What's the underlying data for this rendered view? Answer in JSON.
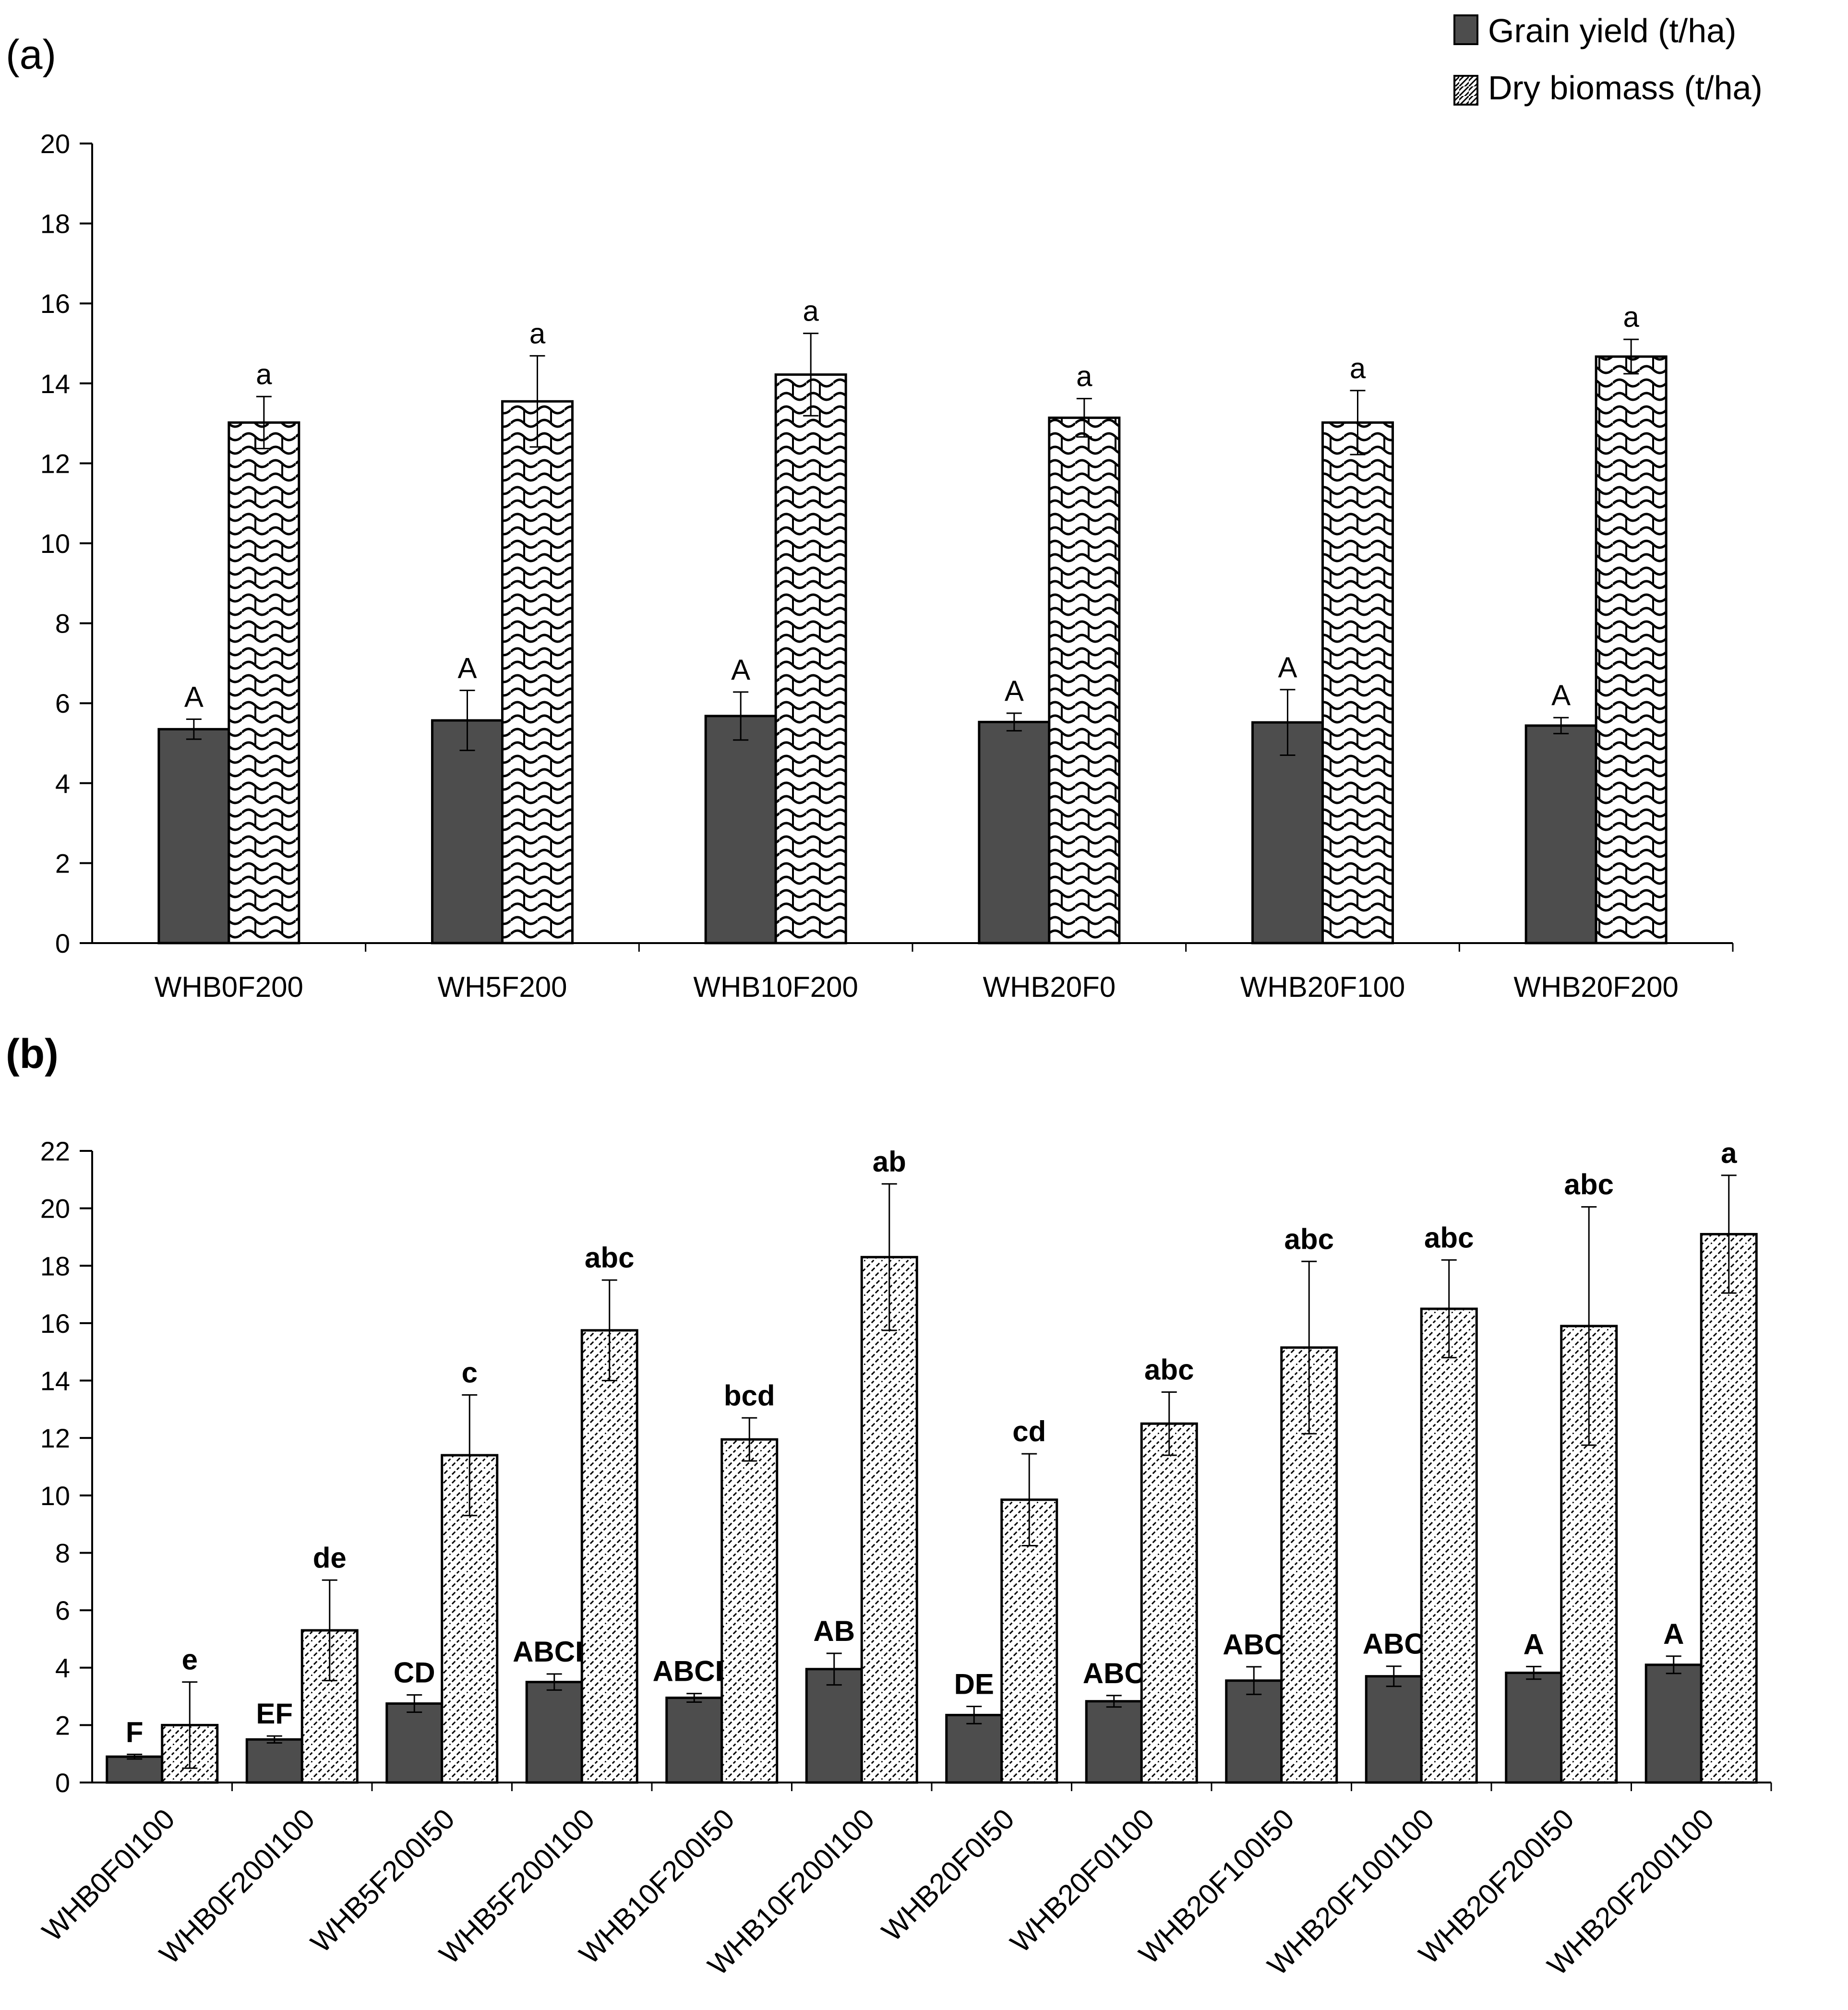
{
  "legend": {
    "grain_label": "Grain yield (t/ha)",
    "biomass_label": "Dry biomass (t/ha)"
  },
  "colors": {
    "grain": "#4d4d4d",
    "bar_outline": "#000000",
    "background": "#ffffff"
  },
  "chart_data": [
    {
      "panel_label": "(a)",
      "type": "bar",
      "ylim": [
        0,
        20
      ],
      "ytick_step": 2,
      "yticks": [
        "0",
        "2",
        "4",
        "6",
        "8",
        "10",
        "12",
        "14",
        "16",
        "18",
        "20"
      ],
      "categories": [
        "WHB0F200",
        "WH5F200",
        "WHB10F200",
        "WHB20F0",
        "WHB20F100",
        "WHB20F200"
      ],
      "series": [
        {
          "name": "Grain yield (t/ha)",
          "values": [
            5.35,
            5.57,
            5.68,
            5.53,
            5.52,
            5.44
          ],
          "errors": [
            0.25,
            0.75,
            0.6,
            0.22,
            0.82,
            0.2
          ],
          "letters": [
            "A",
            "A",
            "A",
            "A",
            "A",
            "A"
          ]
        },
        {
          "name": "Dry biomass (t/ha)",
          "values": [
            13.02,
            13.55,
            14.22,
            13.14,
            13.02,
            14.67
          ],
          "errors": [
            0.65,
            1.14,
            1.03,
            0.48,
            0.8,
            0.43
          ],
          "letters": [
            "a",
            "a",
            "a",
            "a",
            "a",
            "a"
          ]
        }
      ],
      "title": "",
      "xlabel": "",
      "ylabel": "",
      "legend_position": "top-right"
    },
    {
      "panel_label": "(b)",
      "type": "bar",
      "ylim": [
        0,
        22
      ],
      "ytick_step": 2,
      "yticks": [
        "0",
        "2",
        "4",
        "6",
        "8",
        "10",
        "12",
        "14",
        "16",
        "18",
        "20",
        "22"
      ],
      "categories": [
        "WHB0F0I100",
        "WHB0F200I100",
        "WHB5F200I50",
        "WHB5F200I100",
        "WHB10F200I50",
        "WHB10F200I100",
        "WHB20F0I50",
        "WHB20F0I100",
        "WHB20F100I50",
        "WHB20F100I100",
        "WHB20F200I50",
        "WHB20F200I100"
      ],
      "series": [
        {
          "name": "Grain yield (t/ha)",
          "values": [
            0.9,
            1.5,
            2.75,
            3.5,
            2.95,
            3.95,
            2.35,
            2.83,
            3.55,
            3.7,
            3.82,
            4.1
          ],
          "errors": [
            0.08,
            0.12,
            0.3,
            0.28,
            0.15,
            0.55,
            0.3,
            0.2,
            0.48,
            0.35,
            0.22,
            0.3
          ],
          "letters": [
            "F",
            "EF",
            "CD",
            "ABCD",
            "ABCD",
            "AB",
            "DE",
            "ABC",
            "ABC",
            "ABC",
            "A",
            "A"
          ]
        },
        {
          "name": "Dry biomass (t/ha)",
          "values": [
            2.0,
            5.3,
            11.4,
            15.75,
            11.95,
            18.3,
            9.85,
            12.5,
            15.15,
            16.5,
            15.9,
            19.1
          ],
          "errors": [
            1.5,
            1.75,
            2.1,
            1.75,
            0.75,
            2.55,
            1.6,
            1.1,
            3.0,
            1.7,
            4.15,
            2.05
          ],
          "letters": [
            "e",
            "de",
            "c",
            "abc",
            "bcd",
            "ab",
            "cd",
            "abc",
            "abc",
            "abc",
            "abc",
            "a"
          ]
        }
      ],
      "title": "",
      "xlabel": "",
      "ylabel": ""
    }
  ]
}
